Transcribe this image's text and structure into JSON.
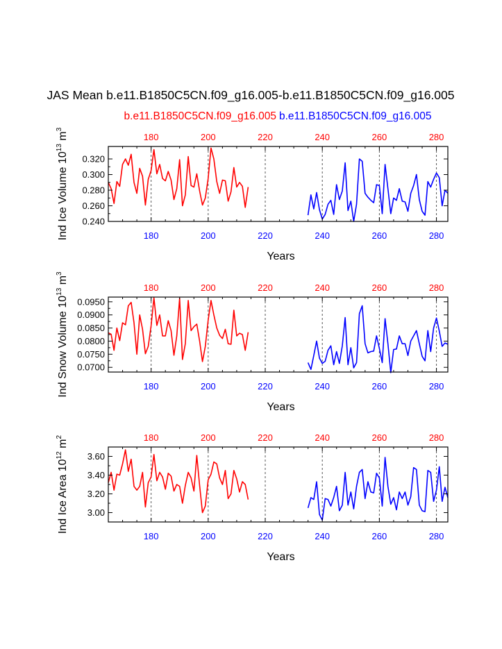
{
  "header": {
    "title": "JAS Mean b.e11.B1850C5CN.f09_g16.005-b.e11.B1850C5CN.f09_g16.005",
    "case_red": "b.e11.B1850C5CN.f09_g16.005",
    "case_blue": "b.e11.B1850C5CN.f09_g16.005"
  },
  "colors": {
    "red": "#ff0000",
    "blue": "#0000ff",
    "axis": "#000000"
  },
  "chart_data": [
    {
      "type": "line",
      "ylabel_main": "Ind Ice Volume 10",
      "ylabel_exp": "13",
      "ylabel_unit": " m",
      "ylabel_unit_exp": "3",
      "xlabel": "Years",
      "xlim": [
        165,
        284
      ],
      "ylim": [
        0.24,
        0.336
      ],
      "yticks": [
        0.24,
        0.26,
        0.28,
        0.3,
        0.32
      ],
      "ytick_labels": [
        "0.240",
        "0.260",
        "0.280",
        "0.300",
        "0.320"
      ],
      "xticks_top": [
        180,
        200,
        220,
        240,
        260,
        280
      ],
      "xtick_labels_top": [
        "180",
        "200",
        "220",
        "240",
        "260",
        "280"
      ],
      "xticks_bottom": [
        180,
        200,
        220,
        240,
        260,
        280
      ],
      "xtick_labels_bottom": [
        "180",
        "200",
        "220",
        "240",
        "260",
        "280"
      ],
      "vlines": [
        180,
        200,
        220,
        240,
        260,
        280
      ],
      "series": [
        {
          "name": "red",
          "x_start": 165,
          "values": [
            0.29,
            0.282,
            0.263,
            0.291,
            0.285,
            0.313,
            0.32,
            0.312,
            0.326,
            0.29,
            0.276,
            0.308,
            0.298,
            0.261,
            0.294,
            0.305,
            0.332,
            0.301,
            0.313,
            0.295,
            0.292,
            0.304,
            0.293,
            0.268,
            0.282,
            0.319,
            0.26,
            0.274,
            0.323,
            0.286,
            0.284,
            0.301,
            0.279,
            0.261,
            0.27,
            0.295,
            0.334,
            0.32,
            0.291,
            0.276,
            0.293,
            0.292,
            0.266,
            0.278,
            0.309,
            0.284,
            0.29,
            0.285,
            0.258,
            0.284
          ]
        },
        {
          "name": "blue",
          "x_start": 235,
          "values": [
            0.248,
            0.274,
            0.256,
            0.277,
            0.255,
            0.243,
            0.249,
            0.262,
            0.267,
            0.249,
            0.287,
            0.268,
            0.279,
            0.315,
            0.254,
            0.266,
            0.24,
            0.262,
            0.32,
            0.317,
            0.276,
            0.271,
            0.267,
            0.264,
            0.287,
            0.286,
            0.25,
            0.313,
            0.282,
            0.25,
            0.27,
            0.267,
            0.282,
            0.266,
            0.265,
            0.253,
            0.276,
            0.286,
            0.3,
            0.268,
            0.253,
            0.248,
            0.291,
            0.284,
            0.294,
            0.302,
            0.296,
            0.26,
            0.28,
            0.276
          ]
        }
      ]
    },
    {
      "type": "line",
      "ylabel_main": "Ind Snow Volume 10",
      "ylabel_exp": "13",
      "ylabel_unit": " m",
      "ylabel_unit_exp": "3",
      "xlabel": "Years",
      "xlim": [
        165,
        284
      ],
      "ylim": [
        0.0682,
        0.0968
      ],
      "yticks": [
        0.07,
        0.075,
        0.08,
        0.085,
        0.09,
        0.095
      ],
      "ytick_labels": [
        "0.0700",
        "0.0750",
        "0.0800",
        "0.0850",
        "0.0900",
        "0.0950"
      ],
      "xticks_top": [
        180,
        200,
        220,
        240,
        260,
        280
      ],
      "xtick_labels_top": [
        "180",
        "200",
        "220",
        "240",
        "260",
        "280"
      ],
      "xticks_bottom": [
        180,
        200,
        220,
        240,
        260,
        280
      ],
      "xtick_labels_bottom": [
        "180",
        "200",
        "220",
        "240",
        "260",
        "280"
      ],
      "vlines": [
        180,
        200,
        220,
        240,
        260,
        280
      ],
      "series": [
        {
          "name": "red",
          "x_start": 165,
          "values": [
            0.0832,
            0.0826,
            0.0765,
            0.085,
            0.0802,
            0.087,
            0.0862,
            0.0935,
            0.0948,
            0.087,
            0.075,
            0.09,
            0.0845,
            0.0752,
            0.078,
            0.0858,
            0.0965,
            0.086,
            0.09,
            0.082,
            0.082,
            0.0878,
            0.084,
            0.0746,
            0.082,
            0.0964,
            0.073,
            0.079,
            0.0955,
            0.084,
            0.0855,
            0.0865,
            0.08,
            0.0722,
            0.078,
            0.088,
            0.0955,
            0.09,
            0.085,
            0.0822,
            0.081,
            0.0845,
            0.079,
            0.0788,
            0.0918,
            0.082,
            0.083,
            0.0825,
            0.0765,
            0.0834
          ]
        },
        {
          "name": "blue",
          "x_start": 235,
          "values": [
            0.0718,
            0.0692,
            0.0745,
            0.08,
            0.0735,
            0.0715,
            0.0723,
            0.0765,
            0.0782,
            0.071,
            0.076,
            0.0715,
            0.0782,
            0.089,
            0.071,
            0.0775,
            0.0698,
            0.0718,
            0.0905,
            0.0935,
            0.079,
            0.0755,
            0.076,
            0.0762,
            0.082,
            0.0772,
            0.0718,
            0.0886,
            0.079,
            0.068,
            0.0768,
            0.077,
            0.082,
            0.079,
            0.079,
            0.0745,
            0.08,
            0.082,
            0.084,
            0.079,
            0.0742,
            0.0725,
            0.084,
            0.076,
            0.085,
            0.0888,
            0.0838,
            0.078,
            0.0793,
            0.0788
          ]
        }
      ]
    },
    {
      "type": "line",
      "ylabel_main": "Ind Ice Area 10",
      "ylabel_exp": "12",
      "ylabel_unit": " m",
      "ylabel_unit_exp": "2",
      "xlabel": "Years",
      "xlim": [
        165,
        284
      ],
      "ylim": [
        2.9,
        3.7
      ],
      "yticks": [
        3.0,
        3.2,
        3.4,
        3.6
      ],
      "ytick_labels": [
        "3.00",
        "3.20",
        "3.40",
        "3.60"
      ],
      "xticks_top": [
        180,
        200,
        220,
        240,
        260,
        280
      ],
      "xtick_labels_top": [
        "180",
        "200",
        "220",
        "240",
        "260",
        "280"
      ],
      "xticks_bottom": [
        180,
        200,
        220,
        240,
        260,
        280
      ],
      "xtick_labels_bottom": [
        "180",
        "200",
        "220",
        "240",
        "260",
        "280"
      ],
      "vlines": [
        180,
        200,
        220,
        240,
        260,
        280
      ],
      "series": [
        {
          "name": "red",
          "x_start": 165,
          "values": [
            3.32,
            3.43,
            3.24,
            3.41,
            3.4,
            3.52,
            3.67,
            3.44,
            3.57,
            3.28,
            3.24,
            3.28,
            3.43,
            3.06,
            3.32,
            3.38,
            3.62,
            3.34,
            3.43,
            3.38,
            3.25,
            3.42,
            3.39,
            3.23,
            3.3,
            3.28,
            3.1,
            3.29,
            3.43,
            3.37,
            3.23,
            3.61,
            3.29,
            3.0,
            3.07,
            3.35,
            3.41,
            3.54,
            3.52,
            3.37,
            3.3,
            3.45,
            3.15,
            3.2,
            3.45,
            3.36,
            3.22,
            3.33,
            3.3,
            3.14
          ]
        },
        {
          "name": "blue",
          "x_start": 235,
          "values": [
            3.05,
            3.16,
            3.14,
            3.33,
            2.98,
            2.92,
            3.15,
            3.14,
            3.07,
            3.16,
            3.28,
            3.02,
            3.08,
            3.43,
            3.08,
            3.22,
            3.04,
            3.28,
            3.43,
            3.46,
            3.15,
            3.33,
            3.22,
            3.21,
            3.42,
            3.37,
            3.07,
            3.59,
            3.28,
            3.09,
            3.16,
            3.03,
            3.22,
            3.15,
            3.22,
            3.08,
            3.17,
            3.48,
            3.46,
            3.08,
            3.02,
            3.01,
            3.45,
            3.43,
            3.12,
            3.24,
            3.49,
            3.12,
            3.27,
            3.16
          ]
        }
      ]
    }
  ]
}
